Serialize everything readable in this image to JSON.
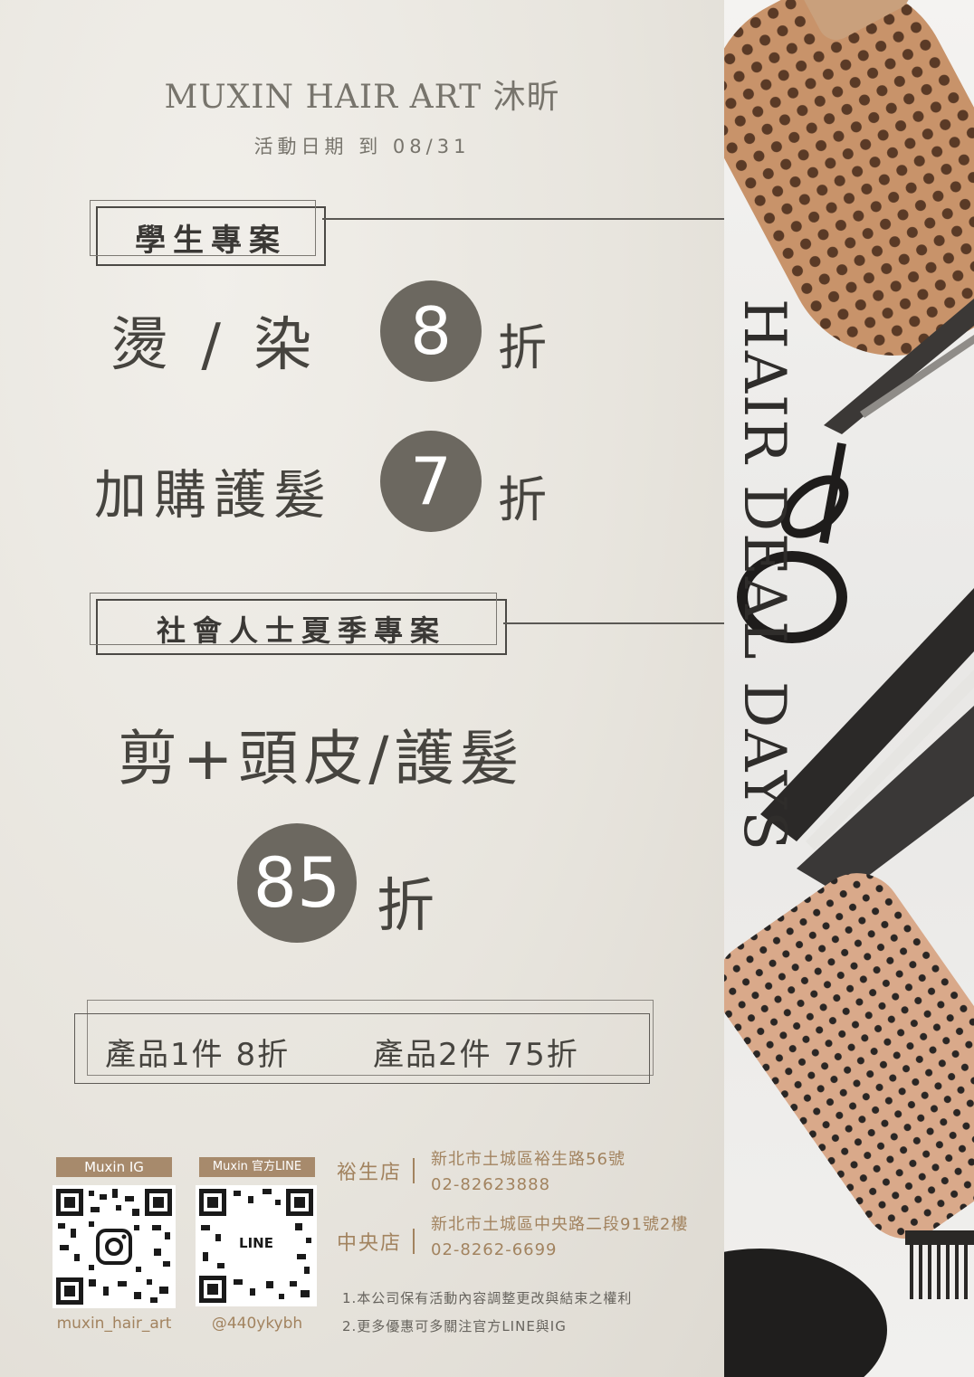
{
  "brand": {
    "name": "MUXIN HAIR ART 沐昕"
  },
  "event": {
    "date": "活動日期 到 08/31"
  },
  "student": {
    "tag": "學生專案",
    "line1": {
      "text": "燙 / 染",
      "discount": "8",
      "unit": "折"
    },
    "line2": {
      "text": "加購護髮",
      "discount": "7",
      "unit": "折"
    }
  },
  "adult": {
    "tag": "社會人士夏季專案",
    "service": "剪+頭皮/護髮",
    "discount": "85",
    "unit": "折"
  },
  "products": {
    "item1": "產品1件 8折",
    "item2": "產品2件 75折"
  },
  "vertical_title": "HAIR DEAL DAYS",
  "contacts": {
    "ig_label": "Muxin IG",
    "ig_handle": "muxin_hair_art",
    "line_label": "Muxin 官方LINE",
    "line_handle": "@440ykybh",
    "line_badge": "LINE"
  },
  "stores": [
    {
      "name": "裕生店",
      "address": "新北市土城區裕生路56號",
      "phone": "02-82623888"
    },
    {
      "name": "中央店",
      "address": "新北市土城區中央路二段91號2樓",
      "phone": "02-8262-6699"
    }
  ],
  "notes": [
    "1.本公司保有活動內容調整更改與結束之權利",
    "2.更多優惠可多關注官方LINE與IG"
  ],
  "colors": {
    "accent_circle": "#6c6860",
    "gold": "#a2835f",
    "text_dark": "#46443f"
  }
}
